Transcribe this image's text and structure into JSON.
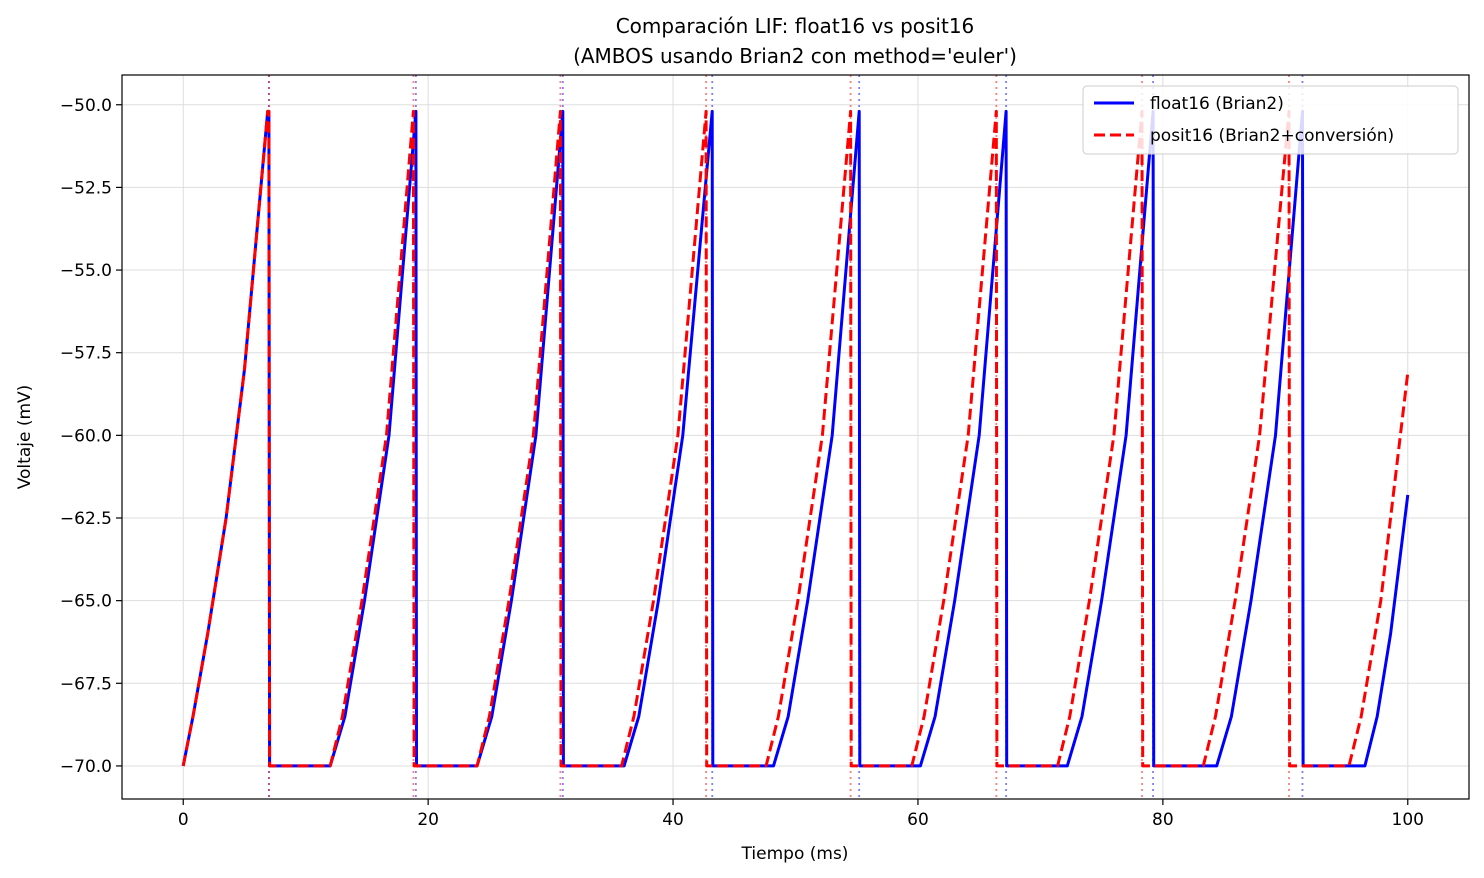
{
  "chart_data": {
    "type": "line",
    "title": "Comparación LIF: float16 vs posit16",
    "subtitle": "(AMBOS usando Brian2 con method='euler')",
    "xlabel": "Tiempo (ms)",
    "ylabel": "Voltaje (mV)",
    "xlim": [
      -5,
      105
    ],
    "ylim": [
      -71,
      -49.1
    ],
    "xticks": [
      0,
      20,
      40,
      60,
      80,
      100
    ],
    "xtick_labels": [
      "0",
      "20",
      "40",
      "60",
      "80",
      "100"
    ],
    "yticks": [
      -70.0,
      -67.5,
      -65.0,
      -62.5,
      -60.0,
      -57.5,
      -55.0,
      -52.5,
      -50.0
    ],
    "ytick_labels": [
      "−70.0",
      "−67.5",
      "−65.0",
      "−62.5",
      "−60.0",
      "−57.5",
      "−55.0",
      "−52.5",
      "−50.0"
    ],
    "grid": true,
    "legend_position": "upper right",
    "series": [
      {
        "name": "float16 (Brian2)",
        "color": "#0000ff",
        "style": "solid",
        "spike_times": [
          7.0,
          19.0,
          31.0,
          43.2,
          55.2,
          67.2,
          79.2,
          91.4
        ],
        "points": [
          [
            0,
            -70
          ],
          [
            0.8,
            -68.5
          ],
          [
            2,
            -66
          ],
          [
            3.5,
            -62.5
          ],
          [
            5,
            -58
          ],
          [
            6.9,
            -50.2
          ],
          [
            7.0,
            -50.2
          ],
          [
            7.05,
            -70
          ],
          [
            12.0,
            -70
          ],
          [
            13.2,
            -68.5
          ],
          [
            14.8,
            -65
          ],
          [
            16.8,
            -60
          ],
          [
            19.0,
            -50.2
          ],
          [
            19.05,
            -70
          ],
          [
            24.0,
            -70
          ],
          [
            25.2,
            -68.5
          ],
          [
            26.8,
            -65
          ],
          [
            28.8,
            -60
          ],
          [
            31.0,
            -50.2
          ],
          [
            31.05,
            -70
          ],
          [
            36.0,
            -70
          ],
          [
            37.2,
            -68.5
          ],
          [
            38.8,
            -65
          ],
          [
            40.8,
            -60
          ],
          [
            43.2,
            -50.2
          ],
          [
            43.25,
            -70
          ],
          [
            48.2,
            -70
          ],
          [
            49.4,
            -68.5
          ],
          [
            51,
            -65
          ],
          [
            53,
            -60
          ],
          [
            55.2,
            -50.2
          ],
          [
            55.25,
            -70
          ],
          [
            60.2,
            -70
          ],
          [
            61.4,
            -68.5
          ],
          [
            63,
            -65
          ],
          [
            65,
            -60
          ],
          [
            67.2,
            -50.2
          ],
          [
            67.25,
            -70
          ],
          [
            72.2,
            -70
          ],
          [
            73.4,
            -68.5
          ],
          [
            75,
            -65
          ],
          [
            77,
            -60
          ],
          [
            79.2,
            -50.2
          ],
          [
            79.25,
            -70
          ],
          [
            84.4,
            -70
          ],
          [
            85.6,
            -68.5
          ],
          [
            87.2,
            -65
          ],
          [
            89.2,
            -60
          ],
          [
            91.4,
            -50.2
          ],
          [
            91.45,
            -70
          ],
          [
            96.5,
            -70
          ],
          [
            97.5,
            -68.5
          ],
          [
            98.6,
            -66
          ],
          [
            100,
            -61.8
          ]
        ]
      },
      {
        "name": "posit16 (Brian2+conversión)",
        "color": "#ff0000",
        "style": "dashed",
        "spike_times": [
          7.0,
          18.8,
          30.8,
          42.7,
          54.5,
          66.4,
          78.3,
          90.3
        ],
        "points": [
          [
            0,
            -70
          ],
          [
            0.8,
            -68.5
          ],
          [
            2,
            -66
          ],
          [
            3.5,
            -62.5
          ],
          [
            5,
            -58
          ],
          [
            6.9,
            -50.2
          ],
          [
            7.0,
            -50.2
          ],
          [
            7.05,
            -70
          ],
          [
            12.0,
            -70
          ],
          [
            13.0,
            -68.5
          ],
          [
            14.6,
            -65
          ],
          [
            16.6,
            -60
          ],
          [
            18.8,
            -50.2
          ],
          [
            18.85,
            -70
          ],
          [
            24.0,
            -70
          ],
          [
            25.0,
            -68.5
          ],
          [
            26.6,
            -65
          ],
          [
            28.6,
            -60
          ],
          [
            30.8,
            -50.2
          ],
          [
            30.85,
            -70
          ],
          [
            35.8,
            -70
          ],
          [
            36.8,
            -68.5
          ],
          [
            38.4,
            -65
          ],
          [
            40.4,
            -60
          ],
          [
            42.7,
            -50.2
          ],
          [
            42.75,
            -70
          ],
          [
            47.6,
            -70
          ],
          [
            48.6,
            -68.5
          ],
          [
            50.2,
            -65
          ],
          [
            52.2,
            -60
          ],
          [
            54.5,
            -50.2
          ],
          [
            54.55,
            -70
          ],
          [
            59.5,
            -70
          ],
          [
            60.5,
            -68.5
          ],
          [
            62.1,
            -65
          ],
          [
            64.1,
            -60
          ],
          [
            66.4,
            -50.2
          ],
          [
            66.45,
            -70
          ],
          [
            71.4,
            -70
          ],
          [
            72.4,
            -68.5
          ],
          [
            74,
            -65
          ],
          [
            76,
            -60
          ],
          [
            78.3,
            -50.2
          ],
          [
            78.35,
            -70
          ],
          [
            83.3,
            -70
          ],
          [
            84.3,
            -68.5
          ],
          [
            85.9,
            -65
          ],
          [
            87.9,
            -60
          ],
          [
            90.3,
            -50.2
          ],
          [
            90.35,
            -70
          ],
          [
            95.2,
            -70
          ],
          [
            96.2,
            -68.5
          ],
          [
            97.8,
            -65
          ],
          [
            100,
            -58.1
          ]
        ]
      }
    ]
  }
}
